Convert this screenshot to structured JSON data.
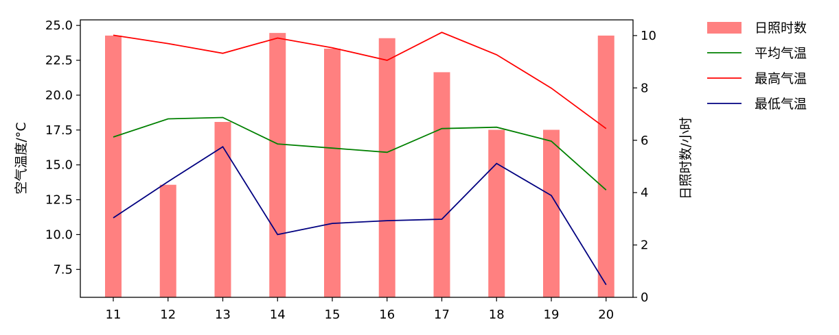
{
  "chart_data": {
    "type": "bar",
    "categories": [
      "11",
      "12",
      "13",
      "14",
      "15",
      "16",
      "17",
      "18",
      "19",
      "20"
    ],
    "bar_series": {
      "name": "日照时数",
      "axis": "right",
      "color": "#ff8080",
      "values": [
        10.0,
        4.3,
        6.7,
        10.1,
        9.5,
        9.9,
        8.6,
        6.4,
        6.4,
        10.0
      ]
    },
    "line_series": [
      {
        "name": "平均气温",
        "axis": "left",
        "color": "#008000",
        "values": [
          17.0,
          18.3,
          18.4,
          16.5,
          16.2,
          15.9,
          17.6,
          17.7,
          16.7,
          13.2
        ]
      },
      {
        "name": "最高气温",
        "axis": "left",
        "color": "#ff0000",
        "values": [
          24.3,
          23.7,
          23.0,
          24.1,
          23.4,
          22.5,
          24.5,
          22.9,
          20.5,
          17.6
        ]
      },
      {
        "name": "最低气温",
        "axis": "left",
        "color": "#000080",
        "values": [
          11.2,
          13.8,
          16.3,
          10.0,
          10.8,
          11.0,
          11.1,
          15.1,
          12.8,
          6.4
        ]
      }
    ],
    "ylabel": "空气温度/°C",
    "y2label": "日照时数/小时",
    "ylim": [
      5.5,
      25.4
    ],
    "y2lim": [
      0,
      10.6
    ],
    "yticks": [
      "7.5",
      "10.0",
      "12.5",
      "15.0",
      "17.5",
      "20.0",
      "22.5",
      "25.0"
    ],
    "y2ticks": [
      "0",
      "2",
      "4",
      "6",
      "8",
      "10"
    ],
    "grid": false,
    "legend_placement": "outside top-right"
  }
}
